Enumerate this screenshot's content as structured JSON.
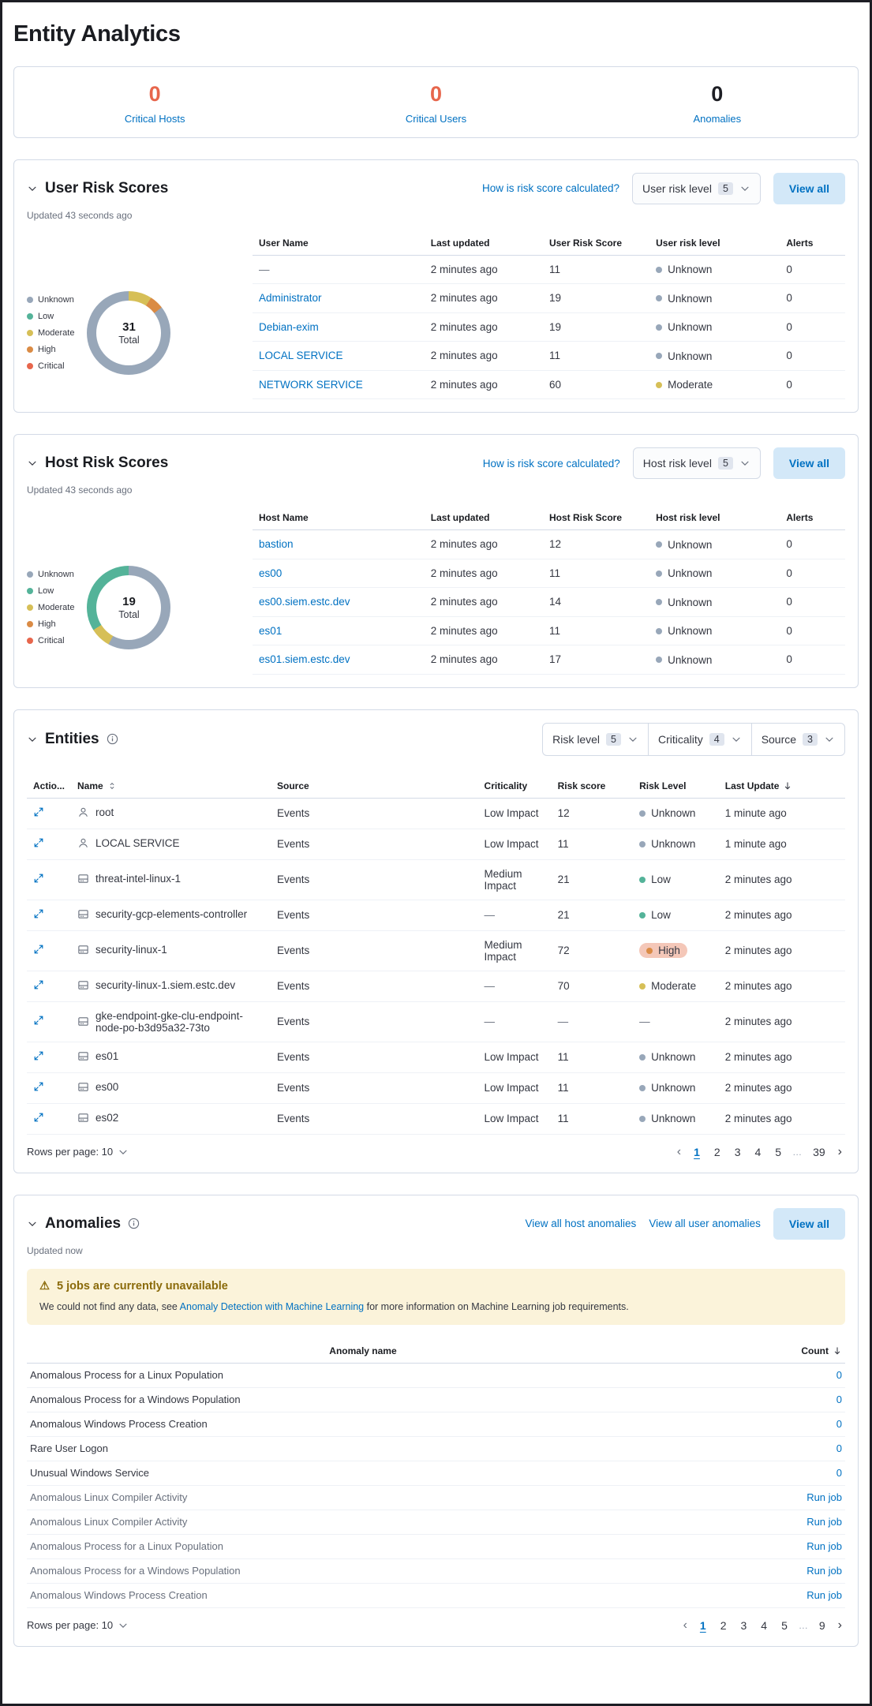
{
  "colors": {
    "accent_blue": "#0071c2",
    "critical_value": "#e7664c",
    "dark_value": "#1d1e24",
    "risk_levels": {
      "Unknown": "#98a7b9",
      "Low": "#54b399",
      "Moderate": "#d6bf57",
      "High": "#da8b45",
      "Critical": "#e7664c"
    },
    "high_badge_bg": "#f4c7b8"
  },
  "page": {
    "title": "Entity Analytics"
  },
  "kpis": [
    {
      "value": "0",
      "label": "Critical Hosts",
      "value_color": "#e7664c"
    },
    {
      "value": "0",
      "label": "Critical Users",
      "value_color": "#e7664c"
    },
    {
      "value": "0",
      "label": "Anomalies",
      "value_color": "#1d1e24"
    }
  ],
  "user_risk_section": {
    "title": "User Risk Scores",
    "updated": "Updated 43 seconds ago",
    "how_link": "How is risk score calculated?",
    "filter": {
      "label": "User risk level",
      "count": "5"
    },
    "view_all_label": "View all",
    "legend": [
      "Unknown",
      "Low",
      "Moderate",
      "High",
      "Critical"
    ],
    "chart_data": {
      "type": "pie",
      "total": "31",
      "total_label": "Total",
      "segments": [
        {
          "level": "Moderate",
          "pct": 9
        },
        {
          "level": "High",
          "pct": 5.5
        },
        {
          "level": "Unknown",
          "pct": 85.5
        }
      ]
    },
    "table": {
      "headers": [
        "User Name",
        "Last updated",
        "User Risk Score",
        "User risk level",
        "Alerts"
      ],
      "rows": [
        {
          "name": "—",
          "is_link": false,
          "last_updated": "2 minutes ago",
          "score": "11",
          "level": "Unknown",
          "alerts": "0"
        },
        {
          "name": "Administrator",
          "is_link": true,
          "last_updated": "2 minutes ago",
          "score": "19",
          "level": "Unknown",
          "alerts": "0"
        },
        {
          "name": "Debian-exim",
          "is_link": true,
          "last_updated": "2 minutes ago",
          "score": "19",
          "level": "Unknown",
          "alerts": "0"
        },
        {
          "name": "LOCAL SERVICE",
          "is_link": true,
          "last_updated": "2 minutes ago",
          "score": "11",
          "level": "Unknown",
          "alerts": "0"
        },
        {
          "name": "NETWORK SERVICE",
          "is_link": true,
          "last_updated": "2 minutes ago",
          "score": "60",
          "level": "Moderate",
          "alerts": "0"
        }
      ]
    }
  },
  "host_risk_section": {
    "title": "Host Risk Scores",
    "updated": "Updated 43 seconds ago",
    "how_link": "How is risk score calculated?",
    "filter": {
      "label": "Host risk level",
      "count": "5"
    },
    "view_all_label": "View all",
    "legend": [
      "Unknown",
      "Low",
      "Moderate",
      "High",
      "Critical"
    ],
    "chart_data": {
      "type": "pie",
      "total": "19",
      "total_label": "Total",
      "segments": [
        {
          "level": "Unknown",
          "pct": 58
        },
        {
          "level": "Moderate",
          "pct": 8
        },
        {
          "level": "Low",
          "pct": 34
        }
      ]
    },
    "table": {
      "headers": [
        "Host Name",
        "Last updated",
        "Host Risk Score",
        "Host risk level",
        "Alerts"
      ],
      "rows": [
        {
          "name": "bastion",
          "is_link": true,
          "last_updated": "2 minutes ago",
          "score": "12",
          "level": "Unknown",
          "alerts": "0"
        },
        {
          "name": "es00",
          "is_link": true,
          "last_updated": "2 minutes ago",
          "score": "11",
          "level": "Unknown",
          "alerts": "0"
        },
        {
          "name": "es00.siem.estc.dev",
          "is_link": true,
          "last_updated": "2 minutes ago",
          "score": "14",
          "level": "Unknown",
          "alerts": "0"
        },
        {
          "name": "es01",
          "is_link": true,
          "last_updated": "2 minutes ago",
          "score": "11",
          "level": "Unknown",
          "alerts": "0"
        },
        {
          "name": "es01.siem.estc.dev",
          "is_link": true,
          "last_updated": "2 minutes ago",
          "score": "17",
          "level": "Unknown",
          "alerts": "0"
        }
      ]
    }
  },
  "entities_section": {
    "title": "Entities",
    "filters": [
      {
        "label": "Risk level",
        "count": "5"
      },
      {
        "label": "Criticality",
        "count": "4"
      },
      {
        "label": "Source",
        "count": "3"
      }
    ],
    "table": {
      "headers": {
        "actions": "Actio...",
        "name": "Name",
        "source": "Source",
        "criticality": "Criticality",
        "risk_score": "Risk score",
        "risk_level": "Risk Level",
        "last_update": "Last Update"
      },
      "rows": [
        {
          "type": "user",
          "name": "root",
          "source": "Events",
          "criticality": "Low Impact",
          "score": "12",
          "level": "Unknown",
          "badge": false,
          "updated": "1 minute ago"
        },
        {
          "type": "user",
          "name": "LOCAL SERVICE",
          "source": "Events",
          "criticality": "Low Impact",
          "score": "11",
          "level": "Unknown",
          "badge": false,
          "updated": "1 minute ago"
        },
        {
          "type": "host",
          "name": "threat-intel-linux-1",
          "source": "Events",
          "criticality": "Medium Impact",
          "score": "21",
          "level": "Low",
          "badge": false,
          "updated": "2 minutes ago"
        },
        {
          "type": "host",
          "name": "security-gcp-elements-controller",
          "source": "Events",
          "criticality": "—",
          "score": "21",
          "level": "Low",
          "badge": false,
          "updated": "2 minutes ago"
        },
        {
          "type": "host",
          "name": "security-linux-1",
          "source": "Events",
          "criticality": "Medium Impact",
          "score": "72",
          "level": "High",
          "badge": true,
          "updated": "2 minutes ago"
        },
        {
          "type": "host",
          "name": "security-linux-1.siem.estc.dev",
          "source": "Events",
          "criticality": "—",
          "score": "70",
          "level": "Moderate",
          "badge": false,
          "updated": "2 minutes ago"
        },
        {
          "type": "host",
          "name": "gke-endpoint-gke-clu-endpoint-node-po-b3d95a32-73to",
          "source": "Events",
          "criticality": "—",
          "score": "—",
          "level": "—",
          "badge": false,
          "updated": "2 minutes ago"
        },
        {
          "type": "host",
          "name": "es01",
          "source": "Events",
          "criticality": "Low Impact",
          "score": "11",
          "level": "Unknown",
          "badge": false,
          "updated": "2 minutes ago"
        },
        {
          "type": "host",
          "name": "es00",
          "source": "Events",
          "criticality": "Low Impact",
          "score": "11",
          "level": "Unknown",
          "badge": false,
          "updated": "2 minutes ago"
        },
        {
          "type": "host",
          "name": "es02",
          "source": "Events",
          "criticality": "Low Impact",
          "score": "11",
          "level": "Unknown",
          "badge": false,
          "updated": "2 minutes ago"
        }
      ]
    },
    "pagination": {
      "rows_per_page_label": "Rows per page: 10",
      "pages": [
        "1",
        "2",
        "3",
        "4",
        "5",
        "…",
        "39"
      ],
      "active_page": "1"
    }
  },
  "anomalies_section": {
    "title": "Anomalies",
    "updated": "Updated now",
    "links": [
      "View all host anomalies",
      "View all user anomalies"
    ],
    "view_all_label": "View all",
    "callout": {
      "title": "5 jobs are currently unavailable",
      "body_prefix": "We could not find any data, see ",
      "body_link": "Anomaly Detection with Machine Learning",
      "body_suffix": " for more information on Machine Learning job requirements."
    },
    "table": {
      "name_header": "Anomaly name",
      "count_header": "Count",
      "rows": [
        {
          "name": "Anomalous Process for a Linux Population",
          "action": "0",
          "action_type": "count",
          "disabled": false
        },
        {
          "name": "Anomalous Process for a Windows Population",
          "action": "0",
          "action_type": "count",
          "disabled": false
        },
        {
          "name": "Anomalous Windows Process Creation",
          "action": "0",
          "action_type": "count",
          "disabled": false
        },
        {
          "name": "Rare User Logon",
          "action": "0",
          "action_type": "count",
          "disabled": false
        },
        {
          "name": "Unusual Windows Service",
          "action": "0",
          "action_type": "count",
          "disabled": false
        },
        {
          "name": "Anomalous Linux Compiler Activity",
          "action": "Run job",
          "action_type": "run",
          "disabled": true
        },
        {
          "name": "Anomalous Linux Compiler Activity",
          "action": "Run job",
          "action_type": "run",
          "disabled": true
        },
        {
          "name": "Anomalous Process for a Linux Population",
          "action": "Run job",
          "action_type": "run",
          "disabled": true
        },
        {
          "name": "Anomalous Process for a Windows Population",
          "action": "Run job",
          "action_type": "run",
          "disabled": true
        },
        {
          "name": "Anomalous Windows Process Creation",
          "action": "Run job",
          "action_type": "run",
          "disabled": true
        }
      ]
    },
    "pagination": {
      "rows_per_page_label": "Rows per page: 10",
      "pages": [
        "1",
        "2",
        "3",
        "4",
        "5",
        "…",
        "9"
      ],
      "active_page": "1"
    }
  }
}
